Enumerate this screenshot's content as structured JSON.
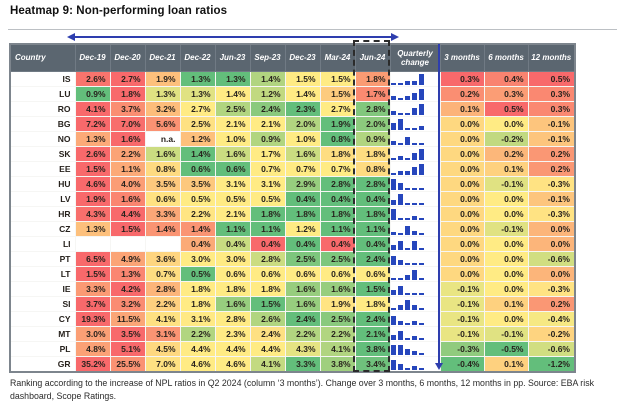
{
  "title": "Heatmap 9: Non-performing loan ratios",
  "footnote": "Ranking according to the increase of NPL ratios in Q2 2024 (column ‘3 months’). Change over 3 months, 6 months, 12 months in pp. Source: EBA risk dashboard, Scope Ratings.",
  "colors": {
    "header_bg": "#5B6670",
    "header_text": "#FFFFFF",
    "scale_green": "#63BE7B",
    "scale_yellow": "#FFEB84",
    "scale_red": "#F8696B",
    "spark_bar": "#2646BC",
    "arrow_blue": "#2E3EAE",
    "dashed_border": "#2B2B2B",
    "na_bg": "#FFFFFF"
  },
  "chart_data": {
    "type": "heatmap",
    "title": "Heatmap 9: Non-performing loan ratios",
    "unit": "%",
    "country_header": "Country",
    "columns": [
      "Dec-19",
      "Dec-20",
      "Dec-21",
      "Dec-22",
      "Jun-23",
      "Sep-23",
      "Dec-23",
      "Mar-24",
      "Jun-24"
    ],
    "spark_header": "Quarterly change",
    "change_columns": [
      "3 months",
      "6 months",
      "12 months"
    ],
    "na_label": "n.a.",
    "rows": [
      {
        "country": "IS",
        "npl": [
          2.6,
          2.7,
          1.9,
          1.3,
          1.3,
          1.4,
          1.5,
          1.5,
          1.8
        ],
        "spark": [
          0.08,
          0.12,
          0.35,
          0.35,
          1.0
        ],
        "changes": [
          0.3,
          0.4,
          0.5
        ]
      },
      {
        "country": "LU",
        "npl": [
          0.9,
          1.8,
          1.3,
          1.3,
          1.4,
          1.2,
          1.4,
          1.5,
          1.7
        ],
        "spark": [
          0.28,
          0.1,
          0.28,
          0.6,
          1.0
        ],
        "changes": [
          0.2,
          0.3,
          0.3
        ]
      },
      {
        "country": "RO",
        "npl": [
          4.1,
          3.7,
          3.2,
          2.7,
          2.5,
          2.4,
          2.3,
          2.7,
          2.8
        ],
        "spark": [
          0.28,
          0.1,
          0.1,
          0.6,
          1.0
        ],
        "changes": [
          0.1,
          0.5,
          0.3
        ]
      },
      {
        "country": "BG",
        "npl": [
          7.2,
          7.0,
          5.6,
          2.5,
          2.1,
          2.1,
          2.0,
          1.9,
          2.0
        ],
        "spark": [
          0.6,
          1.0,
          0.08,
          0.08,
          0.3
        ],
        "changes": [
          0.0,
          0.0,
          -0.1
        ]
      },
      {
        "country": "NO",
        "npl": [
          1.3,
          1.6,
          "n.a.",
          1.2,
          1.0,
          0.9,
          1.0,
          0.8,
          0.9
        ],
        "spark": [
          0.35,
          0.08,
          0.7,
          0.08,
          0.12
        ],
        "changes": [
          0.0,
          -0.2,
          -0.1
        ]
      },
      {
        "country": "SK",
        "npl": [
          2.6,
          2.2,
          1.6,
          1.4,
          1.6,
          1.7,
          1.6,
          1.8,
          1.8
        ],
        "spark": [
          0.08,
          0.3,
          0.08,
          0.55,
          1.0
        ],
        "changes": [
          0.0,
          0.2,
          0.2
        ]
      },
      {
        "country": "EE",
        "npl": [
          1.5,
          1.1,
          0.8,
          0.6,
          0.6,
          0.7,
          0.7,
          0.7,
          0.8
        ],
        "spark": [
          0.12,
          0.3,
          0.35,
          0.7,
          1.0
        ],
        "changes": [
          0.0,
          0.1,
          0.2
        ]
      },
      {
        "country": "HU",
        "npl": [
          4.6,
          4.0,
          3.5,
          3.5,
          3.1,
          3.1,
          2.9,
          2.8,
          2.8
        ],
        "spark": [
          1.0,
          0.6,
          0.12,
          0.08,
          0.08
        ],
        "changes": [
          0.0,
          -0.1,
          -0.3
        ]
      },
      {
        "country": "LV",
        "npl": [
          1.9,
          1.6,
          0.6,
          0.5,
          0.5,
          0.5,
          0.4,
          0.4,
          0.4
        ],
        "spark": [
          0.45,
          1.0,
          0.08,
          0.08,
          0.1
        ],
        "changes": [
          0.0,
          0.0,
          -0.1
        ]
      },
      {
        "country": "HR",
        "npl": [
          4.3,
          4.4,
          3.3,
          2.2,
          2.1,
          1.8,
          1.8,
          1.8,
          1.8
        ],
        "spark": [
          1.0,
          0.12,
          0.08,
          0.3,
          0.08
        ],
        "changes": [
          0.0,
          0.0,
          -0.3
        ]
      },
      {
        "country": "CZ",
        "npl": [
          1.3,
          1.5,
          1.4,
          1.4,
          1.1,
          1.1,
          1.2,
          1.1,
          1.1
        ],
        "spark": [
          0.2,
          0.1,
          0.75,
          0.35,
          0.08
        ],
        "changes": [
          0.0,
          -0.1,
          0.0
        ]
      },
      {
        "country": "LI",
        "npl": [
          null,
          null,
          null,
          0.4,
          0.4,
          0.4,
          0.4,
          0.4,
          0.4
        ],
        "spark": [
          0.4,
          0.8,
          0.08,
          0.8,
          0.08
        ],
        "changes": [
          0.0,
          0.0,
          0.0
        ]
      },
      {
        "country": "PT",
        "npl": [
          6.5,
          4.9,
          3.6,
          3.0,
          3.0,
          2.8,
          2.5,
          2.5,
          2.4
        ],
        "spark": [
          0.8,
          0.4,
          0.06,
          0.06,
          0.06
        ],
        "changes": [
          0.0,
          0.0,
          -0.6
        ]
      },
      {
        "country": "LT",
        "npl": [
          1.5,
          1.3,
          0.7,
          0.5,
          0.6,
          0.6,
          0.6,
          0.6,
          0.6
        ],
        "spark": [
          0.1,
          0.15,
          0.4,
          0.9,
          0.08
        ],
        "changes": [
          0.0,
          0.0,
          0.0
        ]
      },
      {
        "country": "IE",
        "npl": [
          3.3,
          4.2,
          2.8,
          1.8,
          1.8,
          1.8,
          1.6,
          1.6,
          1.5
        ],
        "spark": [
          0.45,
          0.75,
          0.12,
          0.12,
          0.08
        ],
        "changes": [
          -0.1,
          0.0,
          -0.3
        ]
      },
      {
        "country": "SI",
        "npl": [
          3.7,
          3.2,
          2.2,
          1.8,
          1.6,
          1.5,
          1.6,
          1.9,
          1.8
        ],
        "spark": [
          0.08,
          0.4,
          0.9,
          0.45,
          0.08
        ],
        "changes": [
          -0.1,
          0.1,
          0.2
        ]
      },
      {
        "country": "CY",
        "npl": [
          19.3,
          11.5,
          4.1,
          3.1,
          2.8,
          2.6,
          2.4,
          2.5,
          2.4
        ],
        "spark": [
          0.75,
          0.3,
          0.08,
          0.3,
          0.08
        ],
        "changes": [
          -0.1,
          0.0,
          -0.4
        ]
      },
      {
        "country": "MT",
        "npl": [
          3.0,
          3.5,
          3.1,
          2.2,
          2.3,
          2.4,
          2.2,
          2.2,
          2.1
        ],
        "spark": [
          0.45,
          0.75,
          0.12,
          0.3,
          0.08
        ],
        "changes": [
          -0.1,
          -0.1,
          -0.2
        ]
      },
      {
        "country": "PL",
        "npl": [
          4.8,
          5.1,
          4.5,
          4.4,
          4.4,
          4.4,
          4.3,
          4.1,
          3.8
        ],
        "spark": [
          0.9,
          0.9,
          0.5,
          0.3,
          0.08
        ],
        "changes": [
          -0.3,
          -0.5,
          -0.6
        ]
      },
      {
        "country": "GR",
        "npl": [
          35.2,
          25.5,
          7.0,
          4.6,
          4.6,
          4.1,
          3.3,
          3.8,
          3.4
        ],
        "spark": [
          0.9,
          0.5,
          0.08,
          0.35,
          0.08
        ],
        "changes": [
          -0.4,
          0.1,
          -1.2
        ]
      }
    ],
    "cell_color_overrides": [
      {
        "row": 0,
        "col": 8,
        "color": "#FA9B73"
      },
      {
        "row": 2,
        "col": 8,
        "color": "#82C77D"
      },
      {
        "row": 3,
        "col": 8,
        "color": "#8CCA7D"
      },
      {
        "row": 11,
        "col": 3,
        "color": "#FBAA77"
      },
      {
        "row": 11,
        "col": 4,
        "color": "#C8DC81"
      },
      {
        "row": 11,
        "col": 5,
        "color": "#F8696B"
      },
      {
        "row": 11,
        "col": 6,
        "color": "#63BE7B"
      },
      {
        "row": 11,
        "col": 7,
        "color": "#F8696B"
      },
      {
        "row": 11,
        "col": 8,
        "color": "#63BE7B"
      }
    ],
    "legend_position": "none",
    "grid": true
  }
}
